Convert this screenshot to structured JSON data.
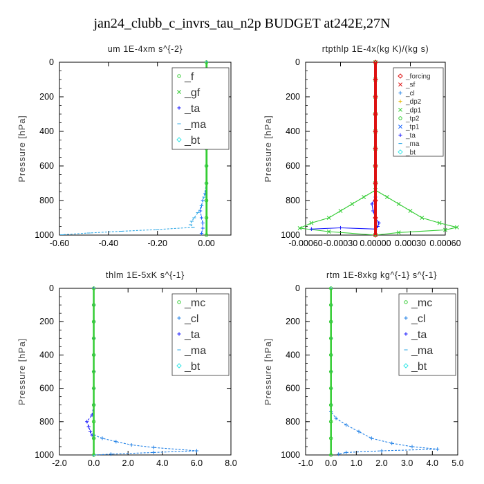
{
  "figure": {
    "title": "jan24_clubb_c_invrs_tau_n2p  BUDGET at242E,27N"
  },
  "chart_data": [
    {
      "type": "line",
      "title": "um   1E-4xm s^{-2}",
      "ylabel": "Pressure [hPa]",
      "xlim": [
        -0.6,
        0.1
      ],
      "ylim": [
        1000,
        0
      ],
      "xticks": [
        -0.6,
        -0.4,
        -0.2,
        0.0
      ],
      "xtick_labels": [
        "-0.60",
        "-0.40",
        "-0.20",
        "0.00"
      ],
      "yticks": [
        0,
        200,
        400,
        600,
        800,
        1000
      ],
      "ytick_labels": [
        "0",
        "200",
        "400",
        "600",
        "800",
        "1000"
      ],
      "legend": {
        "placement": "top-right",
        "style": "big",
        "entries": [
          "_f",
          "_gf",
          "_ta",
          "_ma",
          "_bt"
        ]
      },
      "series": [
        {
          "name": "_ta",
          "color": "#1a66ff",
          "marker": "plus",
          "dashed": true,
          "points": [
            [
              0,
              0
            ],
            [
              0,
              100
            ],
            [
              0,
              200
            ],
            [
              0,
              300
            ],
            [
              0,
              400
            ],
            [
              0,
              500
            ],
            [
              0,
              600
            ],
            [
              0,
              700
            ],
            [
              -0.005,
              760
            ],
            [
              -0.015,
              800
            ],
            [
              -0.02,
              830
            ],
            [
              -0.025,
              860
            ],
            [
              -0.02,
              900
            ],
            [
              -0.015,
              930
            ],
            [
              -0.015,
              960
            ],
            [
              -0.02,
              990
            ]
          ]
        },
        {
          "name": "_ma",
          "color": "#2fa8e6",
          "marker": "dash",
          "dashed": true,
          "points": [
            [
              0,
              0
            ],
            [
              0,
              100
            ],
            [
              0,
              200
            ],
            [
              0,
              300
            ],
            [
              0,
              400
            ],
            [
              0,
              500
            ],
            [
              0,
              600
            ],
            [
              0,
              700
            ],
            [
              -0.01,
              780
            ],
            [
              -0.02,
              830
            ],
            [
              -0.035,
              870
            ],
            [
              -0.05,
              900
            ],
            [
              -0.06,
              920
            ],
            [
              -0.065,
              940
            ],
            [
              -0.055,
              955
            ],
            [
              -0.2,
              968
            ],
            [
              -0.35,
              978
            ],
            [
              -0.48,
              988
            ],
            [
              -0.59,
              998
            ]
          ]
        },
        {
          "name": "_f",
          "color": "#33cc33",
          "marker": "circle",
          "dashed": false,
          "points": [
            [
              0,
              0
            ],
            [
              0,
              100
            ],
            [
              0,
              200
            ],
            [
              0,
              300
            ],
            [
              0,
              400
            ],
            [
              0,
              500
            ],
            [
              0,
              600
            ],
            [
              0,
              700
            ],
            [
              0,
              800
            ],
            [
              0,
              900
            ],
            [
              0,
              1000
            ]
          ]
        },
        {
          "name": "_gf",
          "color": "#33cc33",
          "marker": "none",
          "dashed": false,
          "points": [
            [
              0.003,
              0
            ],
            [
              0.003,
              1000
            ]
          ]
        }
      ]
    },
    {
      "type": "line",
      "title": "rtpthlp   1E-4x(kg K)/(kg s)",
      "ylabel": "Pressure [hPa]",
      "xlim": [
        -0.0006,
        0.0006
      ],
      "ylim": [
        1000,
        0
      ],
      "xticks": [
        -0.0006,
        -0.0003,
        0.0,
        0.0003,
        0.0006
      ],
      "xtick_labels": [
        "-0.00060",
        "-0.00030",
        "0.00000",
        "0.00030",
        "0.00060"
      ],
      "yticks": [
        0,
        200,
        400,
        600,
        800,
        1000
      ],
      "ytick_labels": [
        "0",
        "200",
        "400",
        "600",
        "800",
        "1000"
      ],
      "legend": {
        "placement": "top-right",
        "style": "small",
        "entries": [
          "_forcing",
          "_sf",
          "_cl",
          "_dp2",
          "_dp1",
          "_tp2",
          "_tp1",
          "_ta",
          "_ma",
          "_bt"
        ]
      },
      "series": [
        {
          "name": "_dp1",
          "color": "#33cc33",
          "marker": "cross",
          "dashed": false,
          "points": [
            [
              0,
              0
            ],
            [
              0,
              100
            ],
            [
              0,
              200
            ],
            [
              0,
              300
            ],
            [
              0,
              400
            ],
            [
              0,
              500
            ],
            [
              0,
              600
            ],
            [
              0,
              700
            ],
            [
              0,
              740
            ],
            [
              0.0001,
              780
            ],
            [
              0.0002,
              820
            ],
            [
              0.0003,
              860
            ],
            [
              0.0004,
              900
            ],
            [
              0.00055,
              930
            ],
            [
              0.0007,
              955
            ],
            [
              0.0006,
              970
            ],
            [
              0.0002,
              985
            ],
            [
              0,
              1000
            ]
          ]
        },
        {
          "name": "_tp2",
          "color": "#33cc33",
          "marker": "cross",
          "dashed": false,
          "points": [
            [
              0,
              740
            ],
            [
              -0.0001,
              780
            ],
            [
              -0.0002,
              820
            ],
            [
              -0.0003,
              860
            ],
            [
              -0.0004,
              900
            ],
            [
              -0.00055,
              930
            ],
            [
              -0.00065,
              960
            ],
            [
              -0.0004,
              980
            ],
            [
              0,
              1000
            ]
          ]
        },
        {
          "name": "_ta",
          "color": "#1a1aff",
          "marker": "plus",
          "dashed": false,
          "points": [
            [
              0,
              780
            ],
            [
              -3e-05,
              820
            ],
            [
              -2e-05,
              860
            ],
            [
              0,
              900
            ],
            [
              3e-05,
              930
            ],
            [
              2e-05,
              950
            ],
            [
              0,
              965
            ],
            [
              -0.0003,
              958
            ],
            [
              -0.00055,
              965
            ]
          ]
        },
        {
          "name": "_forcing",
          "color": "#dd1111",
          "marker": "diamond",
          "dashed": false,
          "points": [
            [
              0,
              0
            ],
            [
              0,
              100
            ],
            [
              0,
              200
            ],
            [
              0,
              300
            ],
            [
              0,
              400
            ],
            [
              0,
              500
            ],
            [
              0,
              600
            ],
            [
              0,
              700
            ],
            [
              0,
              800
            ],
            [
              0,
              900
            ],
            [
              0,
              1000
            ]
          ]
        }
      ]
    },
    {
      "type": "line",
      "title": "thlm   1E-5xK s^{-1}",
      "ylabel": "Pressure [hPa]",
      "xlim": [
        -2.0,
        8.0
      ],
      "ylim": [
        1000,
        0
      ],
      "xticks": [
        -2,
        0,
        2,
        4,
        6,
        8
      ],
      "xtick_labels": [
        "-2.0",
        "0.0",
        "2.0",
        "4.0",
        "6.0",
        "8.0"
      ],
      "yticks": [
        0,
        200,
        400,
        600,
        800,
        1000
      ],
      "ytick_labels": [
        "0",
        "200",
        "400",
        "600",
        "800",
        "1000"
      ],
      "legend": {
        "placement": "top-right",
        "style": "big",
        "entries": [
          "_mc",
          "_cl",
          "_ta",
          "_ma",
          "_bt"
        ]
      },
      "series": [
        {
          "name": "_ta",
          "color": "#1a1aff",
          "marker": "plus",
          "dashed": true,
          "points": [
            [
              0,
              0
            ],
            [
              0,
              100
            ],
            [
              0,
              200
            ],
            [
              0,
              300
            ],
            [
              0,
              400
            ],
            [
              0,
              500
            ],
            [
              0,
              600
            ],
            [
              0,
              700
            ],
            [
              -0.1,
              760
            ],
            [
              -0.4,
              800
            ],
            [
              -0.3,
              830
            ],
            [
              -0.2,
              860
            ],
            [
              -0.1,
              880
            ],
            [
              0,
              900
            ]
          ]
        },
        {
          "name": "_cl",
          "color": "#2080e6",
          "marker": "plus",
          "dashed": true,
          "points": [
            [
              0,
              880
            ],
            [
              0.5,
              900
            ],
            [
              1.3,
              920
            ],
            [
              2.2,
              940
            ],
            [
              3.5,
              955
            ],
            [
              6.0,
              975
            ],
            [
              3.5,
              985
            ],
            [
              1.0,
              995
            ],
            [
              0,
              1000
            ]
          ]
        },
        {
          "name": "_mc",
          "color": "#33cc33",
          "marker": "circle",
          "dashed": false,
          "points": [
            [
              0,
              0
            ],
            [
              0,
              100
            ],
            [
              0,
              200
            ],
            [
              0,
              300
            ],
            [
              0,
              400
            ],
            [
              0,
              500
            ],
            [
              0,
              600
            ],
            [
              0,
              700
            ],
            [
              0,
              800
            ],
            [
              0,
              900
            ],
            [
              0,
              1000
            ]
          ]
        }
      ]
    },
    {
      "type": "line",
      "title": "rtm   1E-8xkg kg^{-1} s^{-1}",
      "ylabel": "Pressure [hPa]",
      "xlim": [
        -1.0,
        5.0
      ],
      "ylim": [
        1000,
        0
      ],
      "xticks": [
        -1,
        0,
        1,
        2,
        3,
        4,
        5
      ],
      "xtick_labels": [
        "-1.0",
        "0.0",
        "1.0",
        "2.0",
        "3.0",
        "4.0",
        "5.0"
      ],
      "yticks": [
        0,
        200,
        400,
        600,
        800,
        1000
      ],
      "ytick_labels": [
        "0",
        "200",
        "400",
        "600",
        "800",
        "1000"
      ],
      "legend": {
        "placement": "top-right",
        "style": "big",
        "entries": [
          "_mc",
          "_cl",
          "_ta",
          "_ma",
          "_bt"
        ]
      },
      "series": [
        {
          "name": "_ta",
          "color": "#2080e6",
          "marker": "plus",
          "dashed": true,
          "points": [
            [
              0,
              0
            ],
            [
              0,
              100
            ],
            [
              0,
              200
            ],
            [
              0,
              300
            ],
            [
              0,
              400
            ],
            [
              0,
              500
            ],
            [
              0,
              600
            ],
            [
              0,
              700
            ],
            [
              0,
              740
            ],
            [
              0.2,
              780
            ],
            [
              0.6,
              820
            ],
            [
              1.1,
              860
            ],
            [
              1.6,
              900
            ],
            [
              2.4,
              930
            ],
            [
              3.2,
              950
            ],
            [
              4.2,
              965
            ],
            [
              2.0,
              975
            ],
            [
              0.6,
              985
            ],
            [
              0.3,
              995
            ]
          ]
        },
        {
          "name": "_mc",
          "color": "#33cc33",
          "marker": "circle",
          "dashed": false,
          "points": [
            [
              0,
              0
            ],
            [
              0,
              100
            ],
            [
              0,
              200
            ],
            [
              0,
              300
            ],
            [
              0,
              400
            ],
            [
              0,
              500
            ],
            [
              0,
              600
            ],
            [
              0,
              700
            ],
            [
              0,
              800
            ],
            [
              0,
              900
            ],
            [
              0,
              1000
            ]
          ]
        }
      ]
    }
  ]
}
